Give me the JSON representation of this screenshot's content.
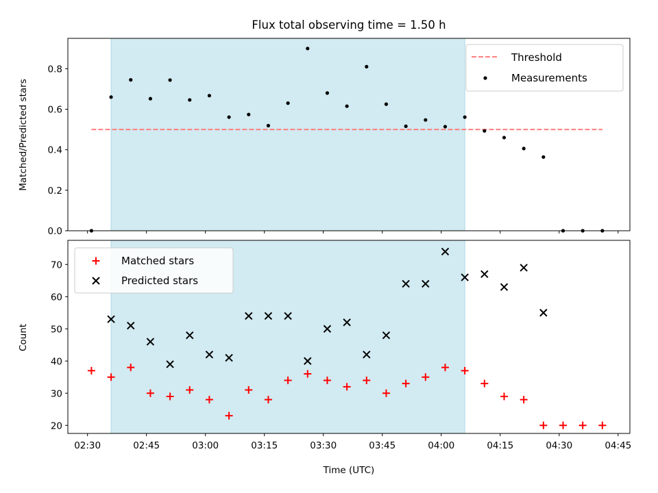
{
  "chart_data": [
    {
      "type": "scatter",
      "title": "Flux total observing time = 1.50 h",
      "xlabel": "",
      "ylabel": "Matched/Predicted stars",
      "xlim": [
        "02:25",
        "04:48"
      ],
      "ylim": [
        0,
        0.95
      ],
      "yticks": [
        0.0,
        0.2,
        0.4,
        0.6,
        0.8
      ],
      "ytick_labels": [
        "0.0",
        "0.2",
        "0.4",
        "0.6",
        "0.8"
      ],
      "x_unit": "minutes since 02:30 UTC are not printed; x values are clock times",
      "shaded_span": {
        "start": "02:36",
        "end": "04:06",
        "color": "#add8e6"
      },
      "threshold": {
        "name": "Threshold",
        "y": 0.5,
        "x_start": "02:31",
        "x_end": "04:41",
        "color": "#ff7f7f"
      },
      "series": [
        {
          "name": "Measurements",
          "marker": "dot",
          "color": "#000000",
          "points": [
            [
              "02:31",
              0.0
            ],
            [
              "02:36",
              0.66
            ],
            [
              "02:41",
              0.745
            ],
            [
              "02:46",
              0.652
            ],
            [
              "02:51",
              0.744
            ],
            [
              "02:56",
              0.646
            ],
            [
              "03:01",
              0.667
            ],
            [
              "03:06",
              0.561
            ],
            [
              "03:11",
              0.574
            ],
            [
              "03:16",
              0.519
            ],
            [
              "03:21",
              0.63
            ],
            [
              "03:26",
              0.9
            ],
            [
              "03:31",
              0.68
            ],
            [
              "03:36",
              0.615
            ],
            [
              "03:41",
              0.81
            ],
            [
              "03:46",
              0.625
            ],
            [
              "03:51",
              0.516
            ],
            [
              "03:56",
              0.547
            ],
            [
              "04:01",
              0.514
            ],
            [
              "04:06",
              0.561
            ],
            [
              "04:11",
              0.493
            ],
            [
              "04:16",
              0.46
            ],
            [
              "04:21",
              0.406
            ],
            [
              "04:26",
              0.364
            ],
            [
              "04:31",
              0.0
            ],
            [
              "04:36",
              0.0
            ],
            [
              "04:41",
              0.0
            ]
          ]
        }
      ],
      "legend": {
        "position": "upper right",
        "entries": [
          "Threshold",
          "Measurements"
        ]
      }
    },
    {
      "type": "scatter",
      "title": "",
      "xlabel": "Time (UTC)",
      "ylabel": "Count",
      "xlim": [
        "02:25",
        "04:48"
      ],
      "ylim": [
        17.5,
        77.5
      ],
      "yticks": [
        20,
        30,
        40,
        50,
        60,
        70
      ],
      "ytick_labels": [
        "20",
        "30",
        "40",
        "50",
        "60",
        "70"
      ],
      "xticks": [
        "02:30",
        "02:45",
        "03:00",
        "03:15",
        "03:30",
        "03:45",
        "04:00",
        "04:15",
        "04:30",
        "04:45"
      ],
      "xtick_labels": [
        "02:30",
        "02:45",
        "03:00",
        "03:15",
        "03:30",
        "03:45",
        "04:00",
        "04:15",
        "04:30",
        "04:45"
      ],
      "shaded_span": {
        "start": "02:36",
        "end": "04:06",
        "color": "#add8e6"
      },
      "series": [
        {
          "name": "Matched stars",
          "marker": "plus",
          "color": "#ff0000",
          "points": [
            [
              "02:31",
              37
            ],
            [
              "02:36",
              35
            ],
            [
              "02:41",
              38
            ],
            [
              "02:46",
              30
            ],
            [
              "02:51",
              29
            ],
            [
              "02:56",
              31
            ],
            [
              "03:01",
              28
            ],
            [
              "03:06",
              23
            ],
            [
              "03:11",
              31
            ],
            [
              "03:16",
              28
            ],
            [
              "03:21",
              34
            ],
            [
              "03:26",
              36
            ],
            [
              "03:31",
              34
            ],
            [
              "03:36",
              32
            ],
            [
              "03:41",
              34
            ],
            [
              "03:46",
              30
            ],
            [
              "03:51",
              33
            ],
            [
              "03:56",
              35
            ],
            [
              "04:01",
              38
            ],
            [
              "04:06",
              37
            ],
            [
              "04:11",
              33
            ],
            [
              "04:16",
              29
            ],
            [
              "04:21",
              28
            ],
            [
              "04:26",
              20
            ],
            [
              "04:31",
              20
            ],
            [
              "04:36",
              20
            ],
            [
              "04:41",
              20
            ]
          ]
        },
        {
          "name": "Predicted stars",
          "marker": "x",
          "color": "#000000",
          "points": [
            [
              "02:36",
              53
            ],
            [
              "02:41",
              51
            ],
            [
              "02:46",
              46
            ],
            [
              "02:51",
              39
            ],
            [
              "02:56",
              48
            ],
            [
              "03:01",
              42
            ],
            [
              "03:06",
              41
            ],
            [
              "03:11",
              54
            ],
            [
              "03:16",
              54
            ],
            [
              "03:21",
              54
            ],
            [
              "03:26",
              40
            ],
            [
              "03:31",
              50
            ],
            [
              "03:36",
              52
            ],
            [
              "03:41",
              42
            ],
            [
              "03:46",
              48
            ],
            [
              "03:51",
              64
            ],
            [
              "03:56",
              64
            ],
            [
              "04:01",
              74
            ],
            [
              "04:06",
              66
            ],
            [
              "04:11",
              67
            ],
            [
              "04:16",
              63
            ],
            [
              "04:21",
              69
            ],
            [
              "04:26",
              55
            ]
          ]
        }
      ],
      "legend": {
        "position": "upper left",
        "entries": [
          "Matched stars",
          "Predicted stars"
        ]
      }
    }
  ]
}
